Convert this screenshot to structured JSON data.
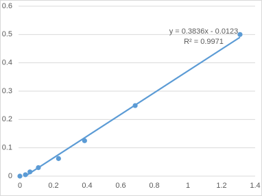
{
  "chart_data": {
    "type": "scatter",
    "x": [
      0,
      0.033,
      0.06,
      0.11,
      0.23,
      0.385,
      0.686,
      1.31
    ],
    "series": [
      {
        "color": "#5b9bd5",
        "values": [
          0,
          0.005,
          0.015,
          0.03,
          0.062,
          0.125,
          0.249,
          0.5
        ]
      }
    ],
    "trendline": {
      "color": "#5b9bd5",
      "x": [
        0.032,
        1.31
      ],
      "values": [
        0,
        0.4902
      ],
      "equation": "y = 0.3836x - 0.0123",
      "r2": "R² = 0.9971"
    },
    "xlim": [
      0,
      1.4
    ],
    "xticks": [
      0,
      0.2,
      0.4,
      0.6,
      0.8,
      1,
      1.2,
      1.4
    ],
    "ylim": [
      0,
      0.6
    ],
    "yticks": [
      0,
      0.1,
      0.2,
      0.3,
      0.4,
      0.5,
      0.6
    ],
    "grid": true
  }
}
